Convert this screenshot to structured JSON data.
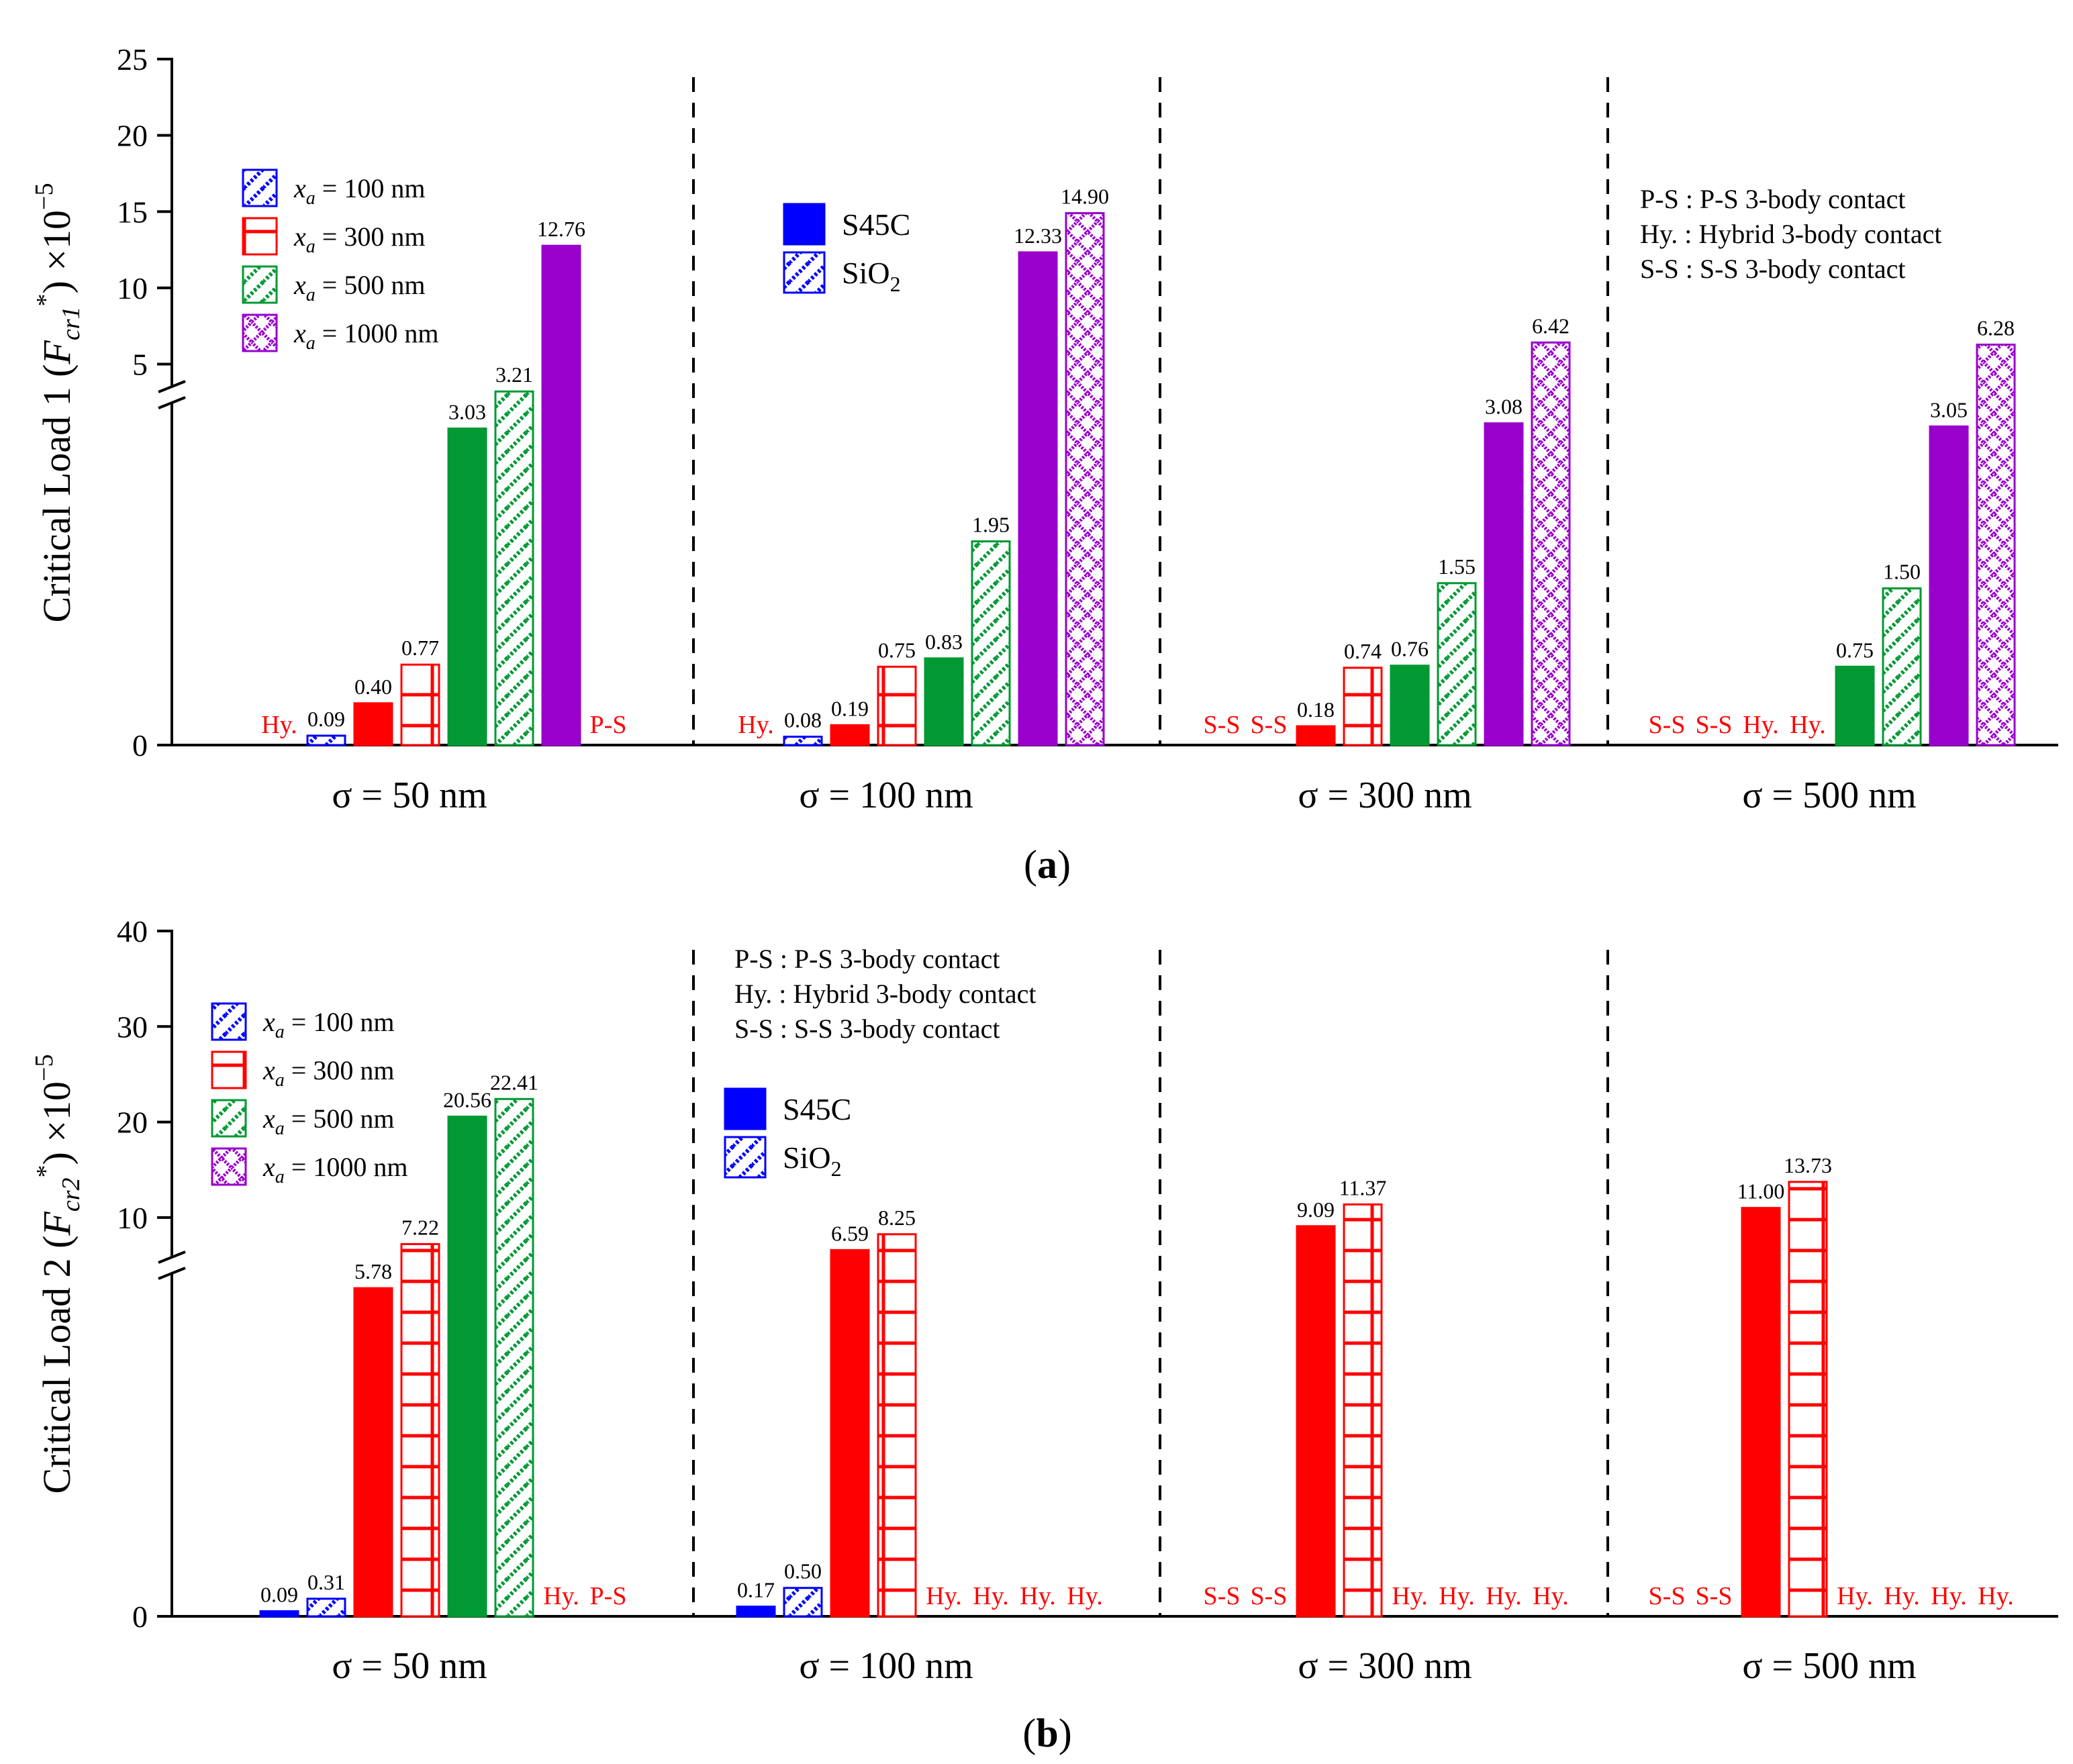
{
  "colors": {
    "s45c_100": "#0000ff",
    "s45c_300": "#ff0000",
    "s45c_500": "#009933",
    "s45c_1000": "#9900cc",
    "annotation": "#ff0000",
    "axis": "#000000"
  },
  "legend_material": {
    "s45c": "S45C",
    "sio2_base": "SiO",
    "sio2_sub": "2"
  },
  "legend_xa": [
    {
      "pattern": "diag",
      "color": "#0000ff",
      "var": "x",
      "sub": "a",
      "text": " = 100 nm"
    },
    {
      "pattern": "grid",
      "color": "#ff0000",
      "var": "x",
      "sub": "a",
      "text": " = 300 nm"
    },
    {
      "pattern": "diag",
      "color": "#009933",
      "var": "x",
      "sub": "a",
      "text": " = 500 nm"
    },
    {
      "pattern": "checker",
      "color": "#9900cc",
      "var": "x",
      "sub": "a",
      "text": " = 1000 nm"
    }
  ],
  "contact_legend": [
    "P-S : P-S 3-body contact",
    "Hy. : Hybrid 3-body contact",
    "S-S : S-S 3-body contact"
  ],
  "chart_data": [
    {
      "type": "bar",
      "panel_label": "a",
      "ylabel": "Critical Load 1 (F_cr1^*) ×10^−5",
      "ylabel_parts": {
        "prefix": "Critical Load 1 (",
        "var": "F",
        "sub": "cr1",
        "sup": "*",
        "suffix": ") ×10",
        "exp": "−5"
      },
      "y_axis_break": true,
      "y_ticks": [
        "0",
        "5",
        "10",
        "15",
        "20",
        "25"
      ],
      "categories": [
        "σ = 50 nm",
        "σ = 100 nm",
        "σ = 300 nm",
        "σ = 500 nm"
      ],
      "bar_order": [
        "S45C 100",
        "SiO2 100",
        "S45C 300",
        "SiO2 300",
        "S45C 500",
        "SiO2 500",
        "S45C 1000",
        "SiO2 1000"
      ],
      "values": [
        [
          null,
          0.09,
          0.4,
          0.77,
          3.03,
          3.21,
          12.76,
          null
        ],
        [
          null,
          0.08,
          0.19,
          0.75,
          0.83,
          1.95,
          12.33,
          14.9
        ],
        [
          null,
          null,
          0.18,
          0.74,
          0.76,
          1.55,
          3.08,
          6.42
        ],
        [
          null,
          null,
          null,
          null,
          0.75,
          1.5,
          3.05,
          6.28
        ]
      ],
      "labels": [
        [
          "Hy.",
          "0.09",
          "0.40",
          "0.77",
          "3.03",
          "3.21",
          "12.76",
          "P-S"
        ],
        [
          "Hy.",
          "0.08",
          "0.19",
          "0.75",
          "0.83",
          "1.95",
          "12.33",
          "14.90"
        ],
        [
          "S-S",
          "S-S",
          "0.18",
          "0.74",
          "0.76",
          "1.55",
          "3.08",
          "6.42"
        ],
        [
          "S-S",
          "S-S",
          "Hy.",
          "Hy.",
          "0.75",
          "1.50",
          "3.05",
          "6.28"
        ]
      ]
    },
    {
      "type": "bar",
      "panel_label": "b",
      "ylabel": "Critical Load 2 (F_cr2^*) ×10^−5",
      "ylabel_parts": {
        "prefix": "Critical Load 2 (",
        "var": "F",
        "sub": "cr2",
        "sup": "*",
        "suffix": ") ×10",
        "exp": "−5"
      },
      "y_axis_break": true,
      "y_ticks": [
        "0",
        "10",
        "20",
        "30",
        "40"
      ],
      "categories": [
        "σ = 50 nm",
        "σ = 100 nm",
        "σ = 300 nm",
        "σ = 500 nm"
      ],
      "bar_order": [
        "S45C 100",
        "SiO2 100",
        "S45C 300",
        "SiO2 300",
        "S45C 500",
        "SiO2 500",
        "S45C 1000",
        "SiO2 1000"
      ],
      "values": [
        [
          0.09,
          0.31,
          5.78,
          7.22,
          20.56,
          22.41,
          null,
          null
        ],
        [
          0.17,
          0.5,
          6.59,
          8.25,
          null,
          null,
          null,
          null
        ],
        [
          null,
          null,
          9.09,
          11.37,
          null,
          null,
          null,
          null
        ],
        [
          null,
          null,
          11.0,
          13.73,
          null,
          null,
          null,
          null
        ]
      ],
      "labels": [
        [
          "0.09",
          "0.31",
          "5.78",
          "7.22",
          "20.56",
          "22.41",
          "Hy.",
          "P-S"
        ],
        [
          "0.17",
          "0.50",
          "6.59",
          "8.25",
          "Hy.",
          "Hy.",
          "Hy.",
          "Hy."
        ],
        [
          "S-S",
          "S-S",
          "9.09",
          "11.37",
          "Hy.",
          "Hy.",
          "Hy.",
          "Hy."
        ],
        [
          "S-S",
          "S-S",
          "11.00",
          "13.73",
          "Hy.",
          "Hy.",
          "Hy.",
          "Hy."
        ]
      ]
    }
  ]
}
